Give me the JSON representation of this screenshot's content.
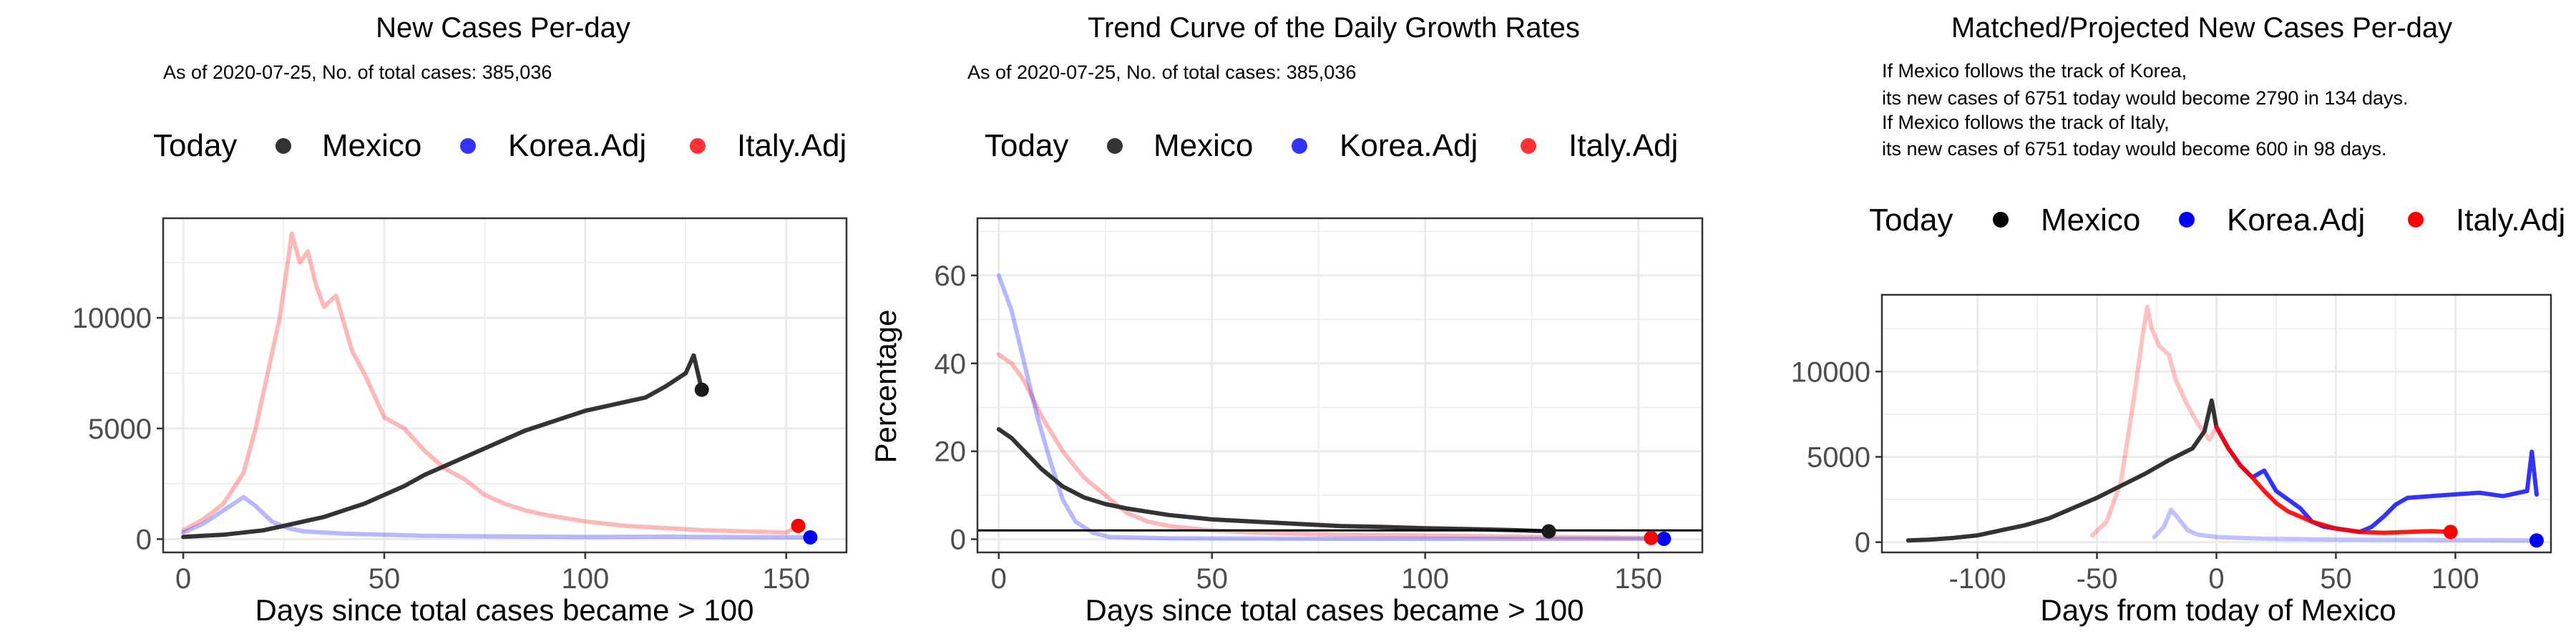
{
  "colors": {
    "mexico": "#333333",
    "korea": "#3333ff",
    "italy": "#ff3333",
    "grid": "#ebebeb",
    "border": "#333333"
  },
  "legend": {
    "title": "Today",
    "entries": [
      "Mexico",
      "Korea.Adj",
      "Italy.Adj"
    ]
  },
  "panels": [
    {
      "title": "New Cases Per-day",
      "subtitle": "As of 2020-07-25, No. of total cases: 385,036",
      "xlabel": "Days since total cases became > 100"
    },
    {
      "title": "Trend Curve of the Daily Growth Rates",
      "subtitle": "As of 2020-07-25, No. of total cases: 385,036",
      "ylabel": "Percentage",
      "xlabel": "Days since total cases became > 100"
    },
    {
      "title": "Matched/Projected New Cases Per-day",
      "notes": [
        "If Mexico follows the track of Korea,",
        "its new cases of 6751 today would become 2790 in 134 days.",
        "If Mexico follows the track of Italy,",
        "its new cases of 6751 today would become 600 in 98 days."
      ],
      "xlabel": "Days from today of Mexico"
    }
  ],
  "chart_data": [
    {
      "type": "line",
      "xlim": [
        -5,
        165
      ],
      "ylim": [
        -600,
        14500
      ],
      "xticks": [
        0,
        50,
        100,
        150
      ],
      "yticks": [
        0,
        5000,
        10000
      ],
      "series": [
        {
          "name": "Mexico",
          "points": [
            [
              0,
              100
            ],
            [
              5,
              150
            ],
            [
              10,
              200
            ],
            [
              15,
              300
            ],
            [
              20,
              400
            ],
            [
              25,
              600
            ],
            [
              30,
              800
            ],
            [
              35,
              1000
            ],
            [
              40,
              1300
            ],
            [
              45,
              1600
            ],
            [
              50,
              2000
            ],
            [
              55,
              2400
            ],
            [
              60,
              2900
            ],
            [
              65,
              3300
            ],
            [
              70,
              3700
            ],
            [
              75,
              4100
            ],
            [
              80,
              4500
            ],
            [
              85,
              4900
            ],
            [
              90,
              5200
            ],
            [
              95,
              5500
            ],
            [
              100,
              5800
            ],
            [
              105,
              6000
            ],
            [
              110,
              6200
            ],
            [
              115,
              6400
            ],
            [
              120,
              6900
            ],
            [
              125,
              7500
            ],
            [
              127,
              8300
            ],
            [
              129,
              6751
            ]
          ]
        },
        {
          "name": "Korea.Adj",
          "points": [
            [
              0,
              300
            ],
            [
              5,
              700
            ],
            [
              10,
              1300
            ],
            [
              15,
              1900
            ],
            [
              18,
              1500
            ],
            [
              22,
              800
            ],
            [
              26,
              500
            ],
            [
              30,
              350
            ],
            [
              40,
              250
            ],
            [
              50,
              200
            ],
            [
              60,
              150
            ],
            [
              80,
              120
            ],
            [
              100,
              100
            ],
            [
              120,
              110
            ],
            [
              140,
              90
            ],
            [
              156,
              80
            ]
          ]
        },
        {
          "name": "Italy.Adj",
          "points": [
            [
              0,
              400
            ],
            [
              5,
              900
            ],
            [
              10,
              1600
            ],
            [
              15,
              3000
            ],
            [
              18,
              5000
            ],
            [
              21,
              7500
            ],
            [
              24,
              10000
            ],
            [
              26,
              12500
            ],
            [
              27,
              13800
            ],
            [
              29,
              12500
            ],
            [
              31,
              13000
            ],
            [
              33,
              11500
            ],
            [
              35,
              10500
            ],
            [
              38,
              11000
            ],
            [
              42,
              8500
            ],
            [
              45,
              7500
            ],
            [
              50,
              5500
            ],
            [
              55,
              5000
            ],
            [
              60,
              4000
            ],
            [
              65,
              3200
            ],
            [
              70,
              2700
            ],
            [
              75,
              2000
            ],
            [
              80,
              1600
            ],
            [
              85,
              1300
            ],
            [
              90,
              1100
            ],
            [
              100,
              800
            ],
            [
              110,
              600
            ],
            [
              120,
              500
            ],
            [
              130,
              400
            ],
            [
              140,
              350
            ],
            [
              150,
              300
            ],
            [
              153,
              600
            ]
          ]
        }
      ],
      "today": {
        "Mexico": [
          129,
          6751
        ],
        "Korea.Adj": [
          156,
          80
        ],
        "Italy.Adj": [
          153,
          600
        ]
      }
    },
    {
      "type": "line",
      "xlim": [
        -5,
        165
      ],
      "ylim": [
        -3,
        73
      ],
      "xticks": [
        0,
        50,
        100,
        150
      ],
      "yticks": [
        0,
        20,
        40,
        60
      ],
      "hline": 2,
      "series": [
        {
          "name": "Mexico",
          "points": [
            [
              0,
              25
            ],
            [
              3,
              23
            ],
            [
              6,
              20
            ],
            [
              10,
              16
            ],
            [
              15,
              12
            ],
            [
              20,
              9.5
            ],
            [
              25,
              8
            ],
            [
              30,
              7
            ],
            [
              40,
              5.5
            ],
            [
              50,
              4.5
            ],
            [
              60,
              4
            ],
            [
              70,
              3.5
            ],
            [
              80,
              3
            ],
            [
              90,
              2.8
            ],
            [
              100,
              2.5
            ],
            [
              110,
              2.3
            ],
            [
              120,
              2.1
            ],
            [
              129,
              1.8
            ]
          ]
        },
        {
          "name": "Korea.Adj",
          "points": [
            [
              0,
              60
            ],
            [
              3,
              52
            ],
            [
              6,
              40
            ],
            [
              9,
              28
            ],
            [
              12,
              18
            ],
            [
              15,
              9
            ],
            [
              18,
              4
            ],
            [
              22,
              1.5
            ],
            [
              26,
              0.5
            ],
            [
              40,
              0.2
            ],
            [
              80,
              0.1
            ],
            [
              156,
              0.1
            ]
          ]
        },
        {
          "name": "Italy.Adj",
          "points": [
            [
              0,
              42
            ],
            [
              3,
              40
            ],
            [
              6,
              36
            ],
            [
              10,
              28
            ],
            [
              15,
              20
            ],
            [
              20,
              14
            ],
            [
              25,
              10
            ],
            [
              30,
              6
            ],
            [
              35,
              4
            ],
            [
              40,
              3
            ],
            [
              50,
              2
            ],
            [
              60,
              1.5
            ],
            [
              80,
              1
            ],
            [
              100,
              0.8
            ],
            [
              130,
              0.5
            ],
            [
              153,
              0.3
            ]
          ]
        }
      ],
      "today": {
        "Mexico": [
          129,
          1.8
        ],
        "Korea.Adj": [
          156,
          0.1
        ],
        "Italy.Adj": [
          153,
          0.3
        ]
      }
    },
    {
      "type": "line",
      "xlim": [
        -140,
        140
      ],
      "ylim": [
        -600,
        14500
      ],
      "xticks": [
        -100,
        -50,
        0,
        50,
        100
      ],
      "yticks": [
        0,
        5000,
        10000
      ],
      "series": [
        {
          "name": "Mexico",
          "points": [
            [
              -129,
              100
            ],
            [
              -120,
              150
            ],
            [
              -110,
              250
            ],
            [
              -100,
              400
            ],
            [
              -90,
              700
            ],
            [
              -80,
              1000
            ],
            [
              -70,
              1400
            ],
            [
              -60,
              2000
            ],
            [
              -50,
              2600
            ],
            [
              -40,
              3300
            ],
            [
              -30,
              4000
            ],
            [
              -20,
              4800
            ],
            [
              -10,
              5500
            ],
            [
              -5,
              6500
            ],
            [
              -2,
              8300
            ],
            [
              0,
              6751
            ]
          ]
        },
        {
          "name": "Korea.Adj (projected)",
          "points": [
            [
              0,
              6751
            ],
            [
              5,
              5500
            ],
            [
              10,
              4500
            ],
            [
              15,
              3800
            ],
            [
              20,
              4200
            ],
            [
              25,
              3000
            ],
            [
              30,
              2500
            ],
            [
              35,
              2000
            ],
            [
              40,
              1200
            ],
            [
              45,
              900
            ],
            [
              50,
              800
            ],
            [
              55,
              700
            ],
            [
              60,
              600
            ],
            [
              65,
              900
            ],
            [
              70,
              1500
            ],
            [
              75,
              2200
            ],
            [
              80,
              2600
            ],
            [
              90,
              2700
            ],
            [
              100,
              2800
            ],
            [
              110,
              2900
            ],
            [
              120,
              2700
            ],
            [
              130,
              3000
            ],
            [
              132,
              5300
            ],
            [
              134,
              2790
            ]
          ]
        },
        {
          "name": "Italy.Adj (projected)",
          "points": [
            [
              0,
              6751
            ],
            [
              5,
              5500
            ],
            [
              10,
              4500
            ],
            [
              15,
              3800
            ],
            [
              20,
              3000
            ],
            [
              25,
              2300
            ],
            [
              30,
              1800
            ],
            [
              35,
              1500
            ],
            [
              40,
              1200
            ],
            [
              45,
              1000
            ],
            [
              50,
              800
            ],
            [
              55,
              700
            ],
            [
              60,
              600
            ],
            [
              70,
              550
            ],
            [
              80,
              600
            ],
            [
              90,
              650
            ],
            [
              98,
              600
            ]
          ]
        },
        {
          "name": "Korea.Adj",
          "points": [
            [
              -26,
              300
            ],
            [
              -22,
              900
            ],
            [
              -19,
              1900
            ],
            [
              -16,
              1400
            ],
            [
              -12,
              700
            ],
            [
              -8,
              450
            ],
            [
              0,
              300
            ],
            [
              20,
              200
            ],
            [
              50,
              150
            ],
            [
              100,
              120
            ],
            [
              134,
              100
            ]
          ]
        },
        {
          "name": "Italy.Adj",
          "points": [
            [
              -52,
              400
            ],
            [
              -46,
              1200
            ],
            [
              -40,
              3500
            ],
            [
              -35,
              8000
            ],
            [
              -31,
              12000
            ],
            [
              -29,
              13800
            ],
            [
              -27,
              12500
            ],
            [
              -24,
              11500
            ],
            [
              -20,
              11000
            ],
            [
              -17,
              9500
            ],
            [
              -12,
              8000
            ],
            [
              -8,
              7000
            ],
            [
              -3,
              6000
            ],
            [
              0,
              6751
            ]
          ]
        }
      ],
      "today": {
        "Korea.Adj": [
          134,
          100
        ],
        "Italy.Adj": [
          98,
          600
        ]
      }
    }
  ]
}
